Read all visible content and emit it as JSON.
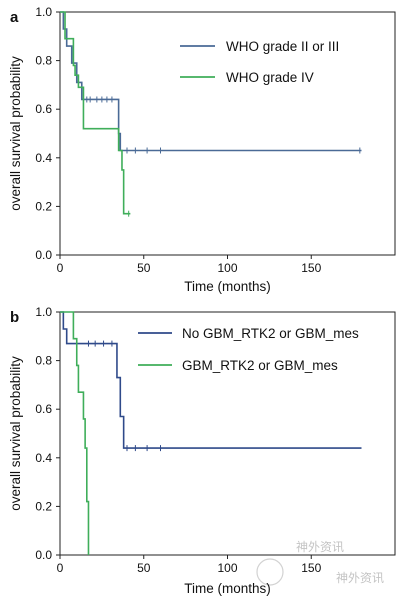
{
  "chart_data": [
    {
      "type": "line",
      "panel_label": "a",
      "xlabel": "Time (months)",
      "ylabel": "overall survival probability",
      "xlim": [
        0,
        200
      ],
      "ylim": [
        0,
        1
      ],
      "xticks": [
        "0",
        "50",
        "100",
        "150"
      ],
      "yticks": [
        "0.0",
        "0.2",
        "0.4",
        "0.6",
        "0.8",
        "1.0"
      ],
      "legend_position": "top-right",
      "series": [
        {
          "name": "WHO grade II or III",
          "color": "#4a6a96",
          "steps": [
            [
              0,
              1.0
            ],
            [
              2,
              0.93
            ],
            [
              4,
              0.86
            ],
            [
              7,
              0.79
            ],
            [
              10,
              0.71
            ],
            [
              13,
              0.64
            ],
            [
              35,
              0.5
            ],
            [
              36,
              0.43
            ],
            [
              180,
              0.43
            ]
          ],
          "censor_times": [
            16,
            18,
            22,
            25,
            28,
            31,
            40,
            45,
            52,
            60,
            179
          ]
        },
        {
          "name": "WHO grade IV",
          "color": "#3fae5a",
          "steps": [
            [
              0,
              1.0
            ],
            [
              3,
              0.89
            ],
            [
              8,
              0.78
            ],
            [
              9,
              0.74
            ],
            [
              11,
              0.69
            ],
            [
              14,
              0.52
            ],
            [
              35,
              0.43
            ],
            [
              37,
              0.35
            ],
            [
              38,
              0.17
            ],
            [
              42,
              0.17
            ]
          ],
          "censor_times": [
            41
          ]
        }
      ]
    },
    {
      "type": "line",
      "panel_label": "b",
      "xlabel": "Time (months)",
      "ylabel": "overall survival probability",
      "xlim": [
        0,
        200
      ],
      "ylim": [
        0,
        1
      ],
      "xticks": [
        "0",
        "50",
        "100",
        "150"
      ],
      "yticks": [
        "0.0",
        "0.2",
        "0.4",
        "0.6",
        "0.8",
        "1.0"
      ],
      "legend_position": "top-right",
      "series": [
        {
          "name": "No GBM_RTK2 or GBM_mes",
          "color": "#2f4a8a",
          "steps": [
            [
              0,
              1.0
            ],
            [
              2,
              0.93
            ],
            [
              4,
              0.87
            ],
            [
              33,
              0.87
            ],
            [
              34,
              0.73
            ],
            [
              36,
              0.57
            ],
            [
              38,
              0.44
            ],
            [
              180,
              0.44
            ]
          ],
          "censor_times": [
            10,
            17,
            21,
            26,
            31,
            40,
            45,
            52,
            60
          ]
        },
        {
          "name": "GBM_RTK2 or GBM_mes",
          "color": "#3fae5a",
          "steps": [
            [
              0,
              1.0
            ],
            [
              8,
              0.89
            ],
            [
              10,
              0.78
            ],
            [
              11,
              0.67
            ],
            [
              14,
              0.56
            ],
            [
              15,
              0.44
            ],
            [
              16,
              0.22
            ],
            [
              17,
              0.0
            ]
          ],
          "censor_times": []
        }
      ]
    }
  ],
  "watermark": {
    "brand_text": "神外资讯",
    "seal_text": "神外资讯"
  }
}
